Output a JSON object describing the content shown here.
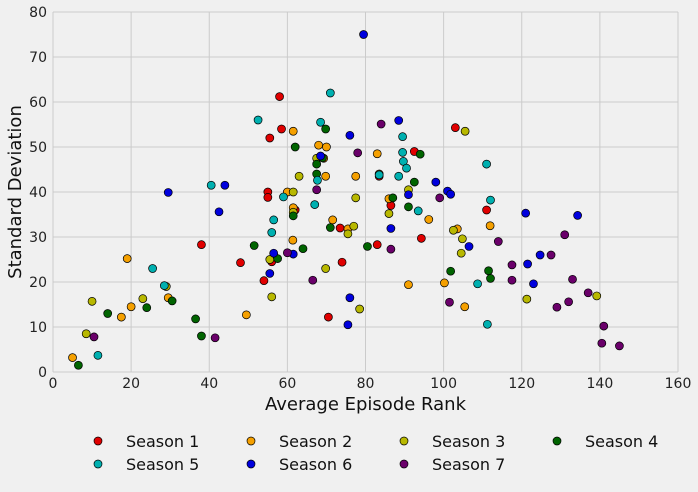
{
  "chart_data": {
    "type": "scatter",
    "title": "",
    "xlabel": "Average Episode Rank",
    "ylabel": "Standard Deviation",
    "xlim": [
      0,
      160
    ],
    "ylim": [
      0,
      80
    ],
    "xticks": [
      0,
      20,
      40,
      60,
      80,
      100,
      120,
      140,
      160
    ],
    "yticks": [
      0,
      10,
      20,
      30,
      40,
      50,
      60,
      70,
      80
    ],
    "grid": true,
    "legend_position": "bottom",
    "series": [
      {
        "name": "Season 1",
        "color": "#e00000",
        "points": [
          [
            38,
            28.3
          ],
          [
            48,
            24.3
          ],
          [
            55,
            40
          ],
          [
            55,
            38.8
          ],
          [
            55.5,
            52
          ],
          [
            56,
            24.5
          ],
          [
            58,
            61.2
          ],
          [
            58.5,
            54
          ],
          [
            62,
            36
          ],
          [
            70.5,
            12.2
          ],
          [
            73.5,
            32
          ],
          [
            74,
            24.4
          ],
          [
            83,
            28.3
          ],
          [
            83.5,
            43.5
          ],
          [
            86.5,
            37
          ],
          [
            92.5,
            49
          ],
          [
            94.3,
            29.7
          ],
          [
            103,
            54.3
          ],
          [
            111,
            36
          ],
          [
            54,
            20.3
          ]
        ]
      },
      {
        "name": "Season 2",
        "color": "#f5a000",
        "points": [
          [
            5,
            3.2
          ],
          [
            17.5,
            12.2
          ],
          [
            19,
            25.2
          ],
          [
            20,
            14.5
          ],
          [
            29.5,
            16.5
          ],
          [
            49.5,
            12.7
          ],
          [
            60,
            40
          ],
          [
            61.4,
            29.3
          ],
          [
            61.5,
            53.5
          ],
          [
            61.5,
            36.5
          ],
          [
            68,
            50.4
          ],
          [
            69.3,
            47.5
          ],
          [
            69.8,
            43.5
          ],
          [
            70,
            50
          ],
          [
            71.6,
            33.8
          ],
          [
            75.5,
            31.8
          ],
          [
            77.5,
            43.5
          ],
          [
            83,
            48.5
          ],
          [
            83.5,
            44
          ],
          [
            86,
            38.5
          ],
          [
            91,
            19.4
          ],
          [
            96.2,
            33.9
          ],
          [
            100.2,
            19.8
          ],
          [
            103.5,
            31.8
          ],
          [
            105.4,
            14.5
          ],
          [
            111.9,
            32.5
          ]
        ]
      },
      {
        "name": "Season 3",
        "color": "#b8b800",
        "points": [
          [
            8.5,
            8.5
          ],
          [
            10,
            15.7
          ],
          [
            23,
            16.3
          ],
          [
            29,
            19
          ],
          [
            55.5,
            25
          ],
          [
            56,
            16.7
          ],
          [
            61.5,
            35.5
          ],
          [
            61.5,
            40
          ],
          [
            63,
            43.5
          ],
          [
            67.5,
            47.5
          ],
          [
            69.8,
            23
          ],
          [
            75.5,
            30.7
          ],
          [
            77,
            32.4
          ],
          [
            77.5,
            38.7
          ],
          [
            78.5,
            14
          ],
          [
            86,
            35.2
          ],
          [
            91,
            40.5
          ],
          [
            102.5,
            31.5
          ],
          [
            104.5,
            26.4
          ],
          [
            104.8,
            29.6
          ],
          [
            105.5,
            53.5
          ],
          [
            121.3,
            16.2
          ],
          [
            139.2,
            16.9
          ]
        ]
      },
      {
        "name": "Season 4",
        "color": "#006400",
        "points": [
          [
            6.5,
            1.5
          ],
          [
            14,
            13
          ],
          [
            24,
            14.3
          ],
          [
            30.5,
            15.8
          ],
          [
            36.5,
            11.8
          ],
          [
            38,
            8
          ],
          [
            51.5,
            28.1
          ],
          [
            57.5,
            25.2
          ],
          [
            61.5,
            34.7
          ],
          [
            62,
            50
          ],
          [
            64,
            27.4
          ],
          [
            67.5,
            44
          ],
          [
            67.5,
            46.2
          ],
          [
            69,
            47.6
          ],
          [
            69.8,
            54
          ],
          [
            71,
            32.1
          ],
          [
            80.5,
            27.9
          ],
          [
            87,
            38.7
          ],
          [
            91,
            36.7
          ],
          [
            92.5,
            42.2
          ],
          [
            94,
            48.4
          ],
          [
            101.8,
            22.4
          ],
          [
            111.5,
            22.5
          ],
          [
            112,
            20.8
          ]
        ]
      },
      {
        "name": "Season 5",
        "color": "#00b0b0",
        "points": [
          [
            11.5,
            3.7
          ],
          [
            25.5,
            23
          ],
          [
            28.5,
            19.2
          ],
          [
            40.5,
            41.5
          ],
          [
            52.5,
            56
          ],
          [
            56,
            31
          ],
          [
            56.5,
            33.8
          ],
          [
            59,
            38.9
          ],
          [
            67,
            37.2
          ],
          [
            67.7,
            42.6
          ],
          [
            68.5,
            55.5
          ],
          [
            71,
            62
          ],
          [
            83.5,
            43.8
          ],
          [
            88.5,
            43.5
          ],
          [
            89.5,
            52.3
          ],
          [
            89.5,
            48.8
          ],
          [
            89.7,
            46.8
          ],
          [
            90.5,
            45.3
          ],
          [
            93.5,
            35.8
          ],
          [
            108.7,
            19.6
          ],
          [
            111,
            46.2
          ],
          [
            111.2,
            10.6
          ],
          [
            112,
            38.2
          ]
        ]
      },
      {
        "name": "Season 6",
        "color": "#0000dd",
        "points": [
          [
            29.5,
            39.9
          ],
          [
            42.5,
            35.6
          ],
          [
            44,
            41.5
          ],
          [
            55.5,
            21.9
          ],
          [
            56.5,
            26.4
          ],
          [
            61.5,
            26.2
          ],
          [
            68.5,
            48
          ],
          [
            75.5,
            10.5
          ],
          [
            76,
            16.5
          ],
          [
            76,
            52.6
          ],
          [
            79.5,
            75
          ],
          [
            86.5,
            31.9
          ],
          [
            88.5,
            55.9
          ],
          [
            91,
            39.4
          ],
          [
            98,
            42.2
          ],
          [
            101,
            40.2
          ],
          [
            101.8,
            39.5
          ],
          [
            106.5,
            27.9
          ],
          [
            121,
            35.3
          ],
          [
            121.5,
            24
          ],
          [
            123,
            19.6
          ],
          [
            124.7,
            26
          ],
          [
            134.3,
            34.8
          ]
        ]
      },
      {
        "name": "Season 7",
        "color": "#6a006a",
        "points": [
          [
            10.5,
            7.8
          ],
          [
            41.5,
            7.6
          ],
          [
            60,
            26.5
          ],
          [
            66.5,
            20.4
          ],
          [
            67.5,
            40.5
          ],
          [
            78,
            48.7
          ],
          [
            84,
            55.1
          ],
          [
            86.5,
            27.3
          ],
          [
            99,
            38.7
          ],
          [
            101.5,
            15.5
          ],
          [
            114,
            29
          ],
          [
            117.5,
            23.8
          ],
          [
            117.5,
            20.4
          ],
          [
            127.5,
            26
          ],
          [
            129,
            14.4
          ],
          [
            131,
            30.5
          ],
          [
            132,
            15.6
          ],
          [
            133,
            20.6
          ],
          [
            137,
            17.6
          ],
          [
            140.5,
            6.4
          ],
          [
            141,
            10.2
          ],
          [
            145,
            5.8
          ]
        ]
      }
    ]
  }
}
